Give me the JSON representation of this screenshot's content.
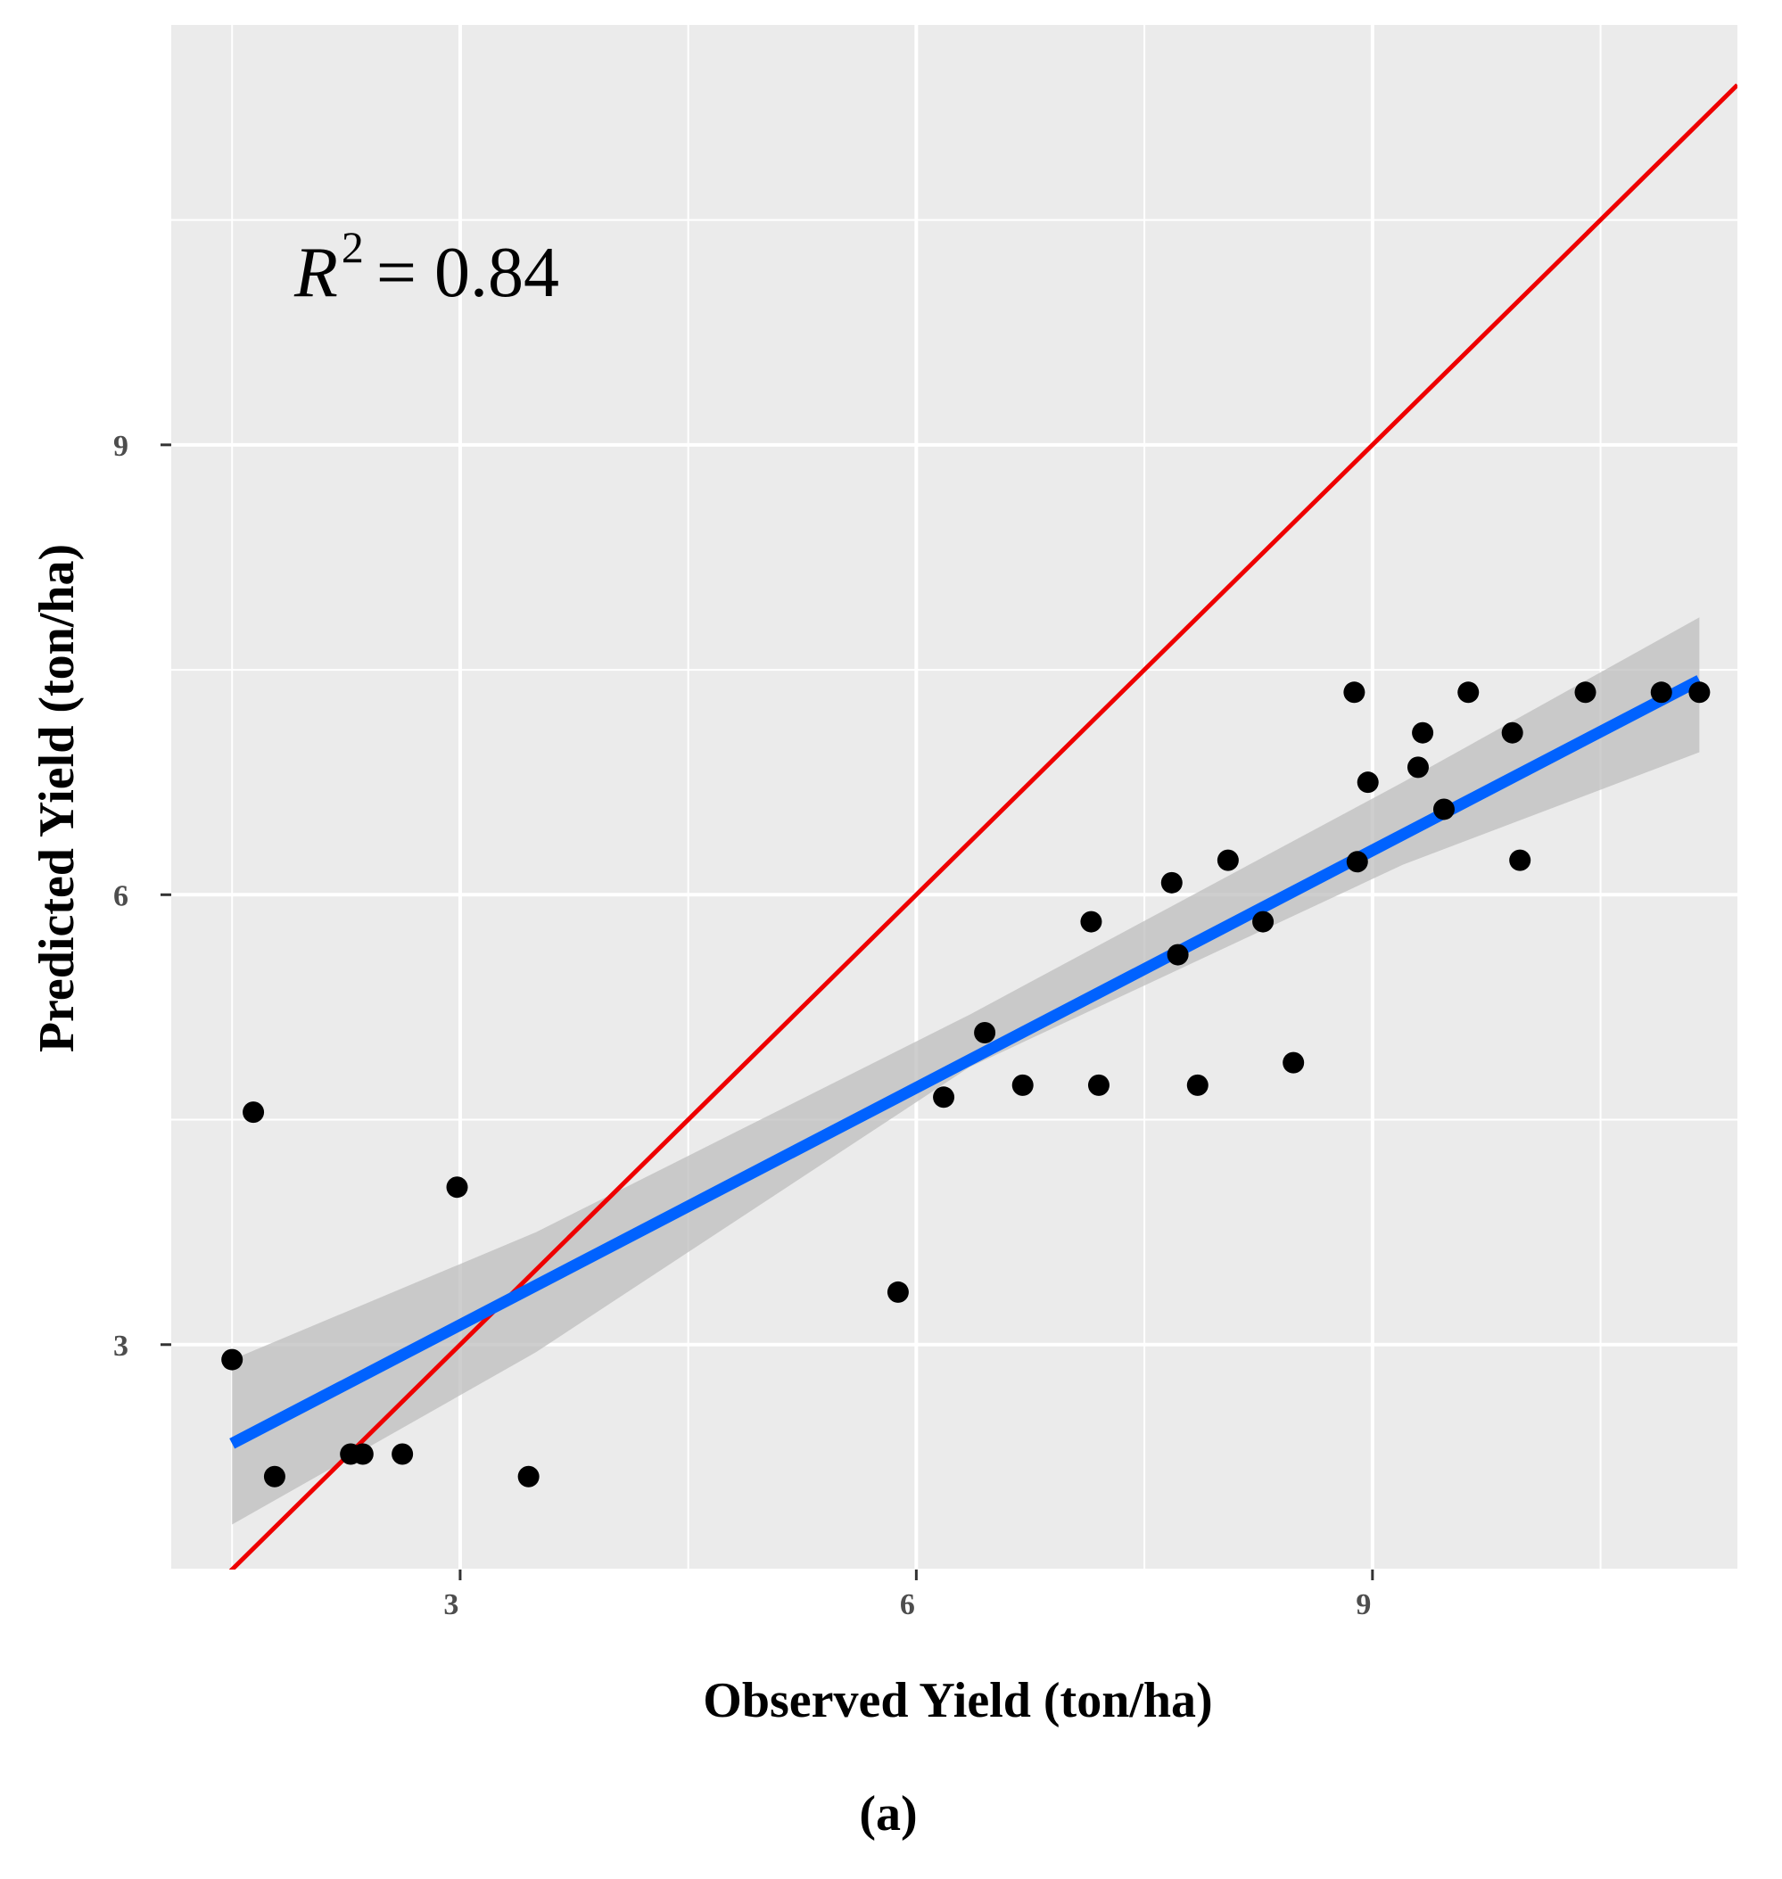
{
  "chart_data": {
    "type": "scatter",
    "xlabel": "Observed Yield (ton/ha)",
    "ylabel": "Predicted Yield (ton/ha)",
    "caption": "(a)",
    "xlim": [
      1.1,
      11.4
    ],
    "ylim": [
      1.5,
      11.8
    ],
    "x_ticks": [
      3,
      6,
      9
    ],
    "y_ticks": [
      3,
      6,
      9
    ],
    "x_minor": [
      1.5,
      4.5,
      7.5,
      10.5
    ],
    "y_minor": [
      1.5,
      4.5,
      7.5,
      10.5
    ],
    "grid": true,
    "annotation": {
      "lhs": "R",
      "sup": "2",
      "rhs": "= 0.84"
    },
    "colors": {
      "panel": "#ebebeb",
      "grid": "#ffffff",
      "points": "#000000",
      "identity_line": "#ee0000",
      "fit_line": "#0062ff",
      "ribbon": "#bdbdbd"
    },
    "series": [
      {
        "name": "observations",
        "kind": "points",
        "x": [
          1.5,
          1.64,
          1.78,
          2.28,
          2.36,
          2.62,
          2.98,
          3.45,
          5.88,
          6.18,
          6.45,
          6.7,
          7.15,
          7.2,
          7.68,
          7.72,
          7.85,
          8.05,
          8.28,
          8.48,
          8.88,
          8.9,
          8.97,
          9.3,
          9.33,
          9.47,
          9.63,
          9.92,
          9.97,
          10.4,
          10.9,
          11.15
        ],
        "y": [
          2.9,
          4.55,
          2.12,
          2.27,
          2.27,
          2.27,
          4.05,
          2.12,
          3.35,
          4.65,
          5.08,
          4.73,
          5.82,
          4.73,
          6.08,
          5.6,
          4.73,
          6.23,
          5.82,
          4.88,
          7.35,
          6.22,
          6.75,
          6.85,
          7.08,
          6.57,
          7.35,
          7.08,
          6.23,
          7.35,
          7.35,
          7.35
        ]
      },
      {
        "name": "1:1 line",
        "kind": "line",
        "x": [
          1.1,
          11.4
        ],
        "y": [
          1.1,
          11.4
        ]
      },
      {
        "name": "linear fit",
        "kind": "line",
        "x": [
          1.5,
          11.15
        ],
        "y": [
          2.34,
          7.43
        ]
      },
      {
        "name": "95% confidence band",
        "kind": "ribbon",
        "x": [
          1.5,
          3.5,
          6.35,
          9.2,
          11.15
        ],
        "ymin": [
          1.8,
          2.95,
          4.85,
          6.2,
          6.95
        ],
        "ymax": [
          2.9,
          3.75,
          5.2,
          6.75,
          7.85
        ]
      }
    ]
  }
}
